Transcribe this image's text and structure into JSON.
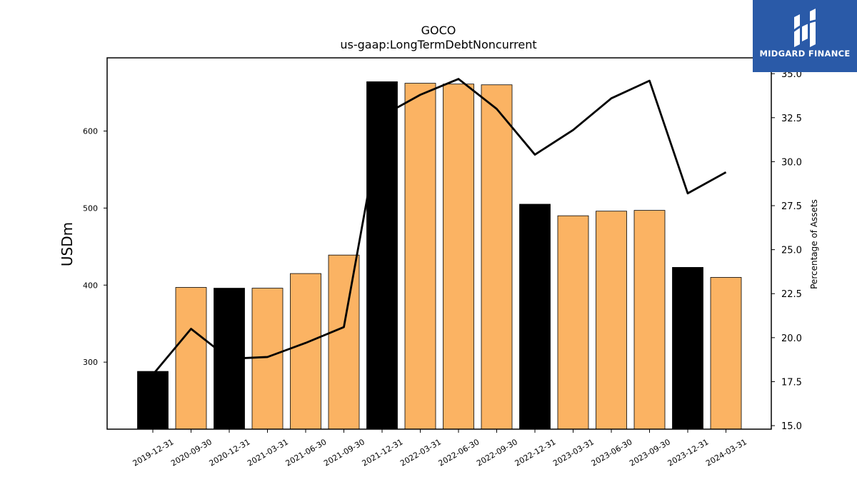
{
  "chart_data": {
    "type": "bar",
    "title": "GOCO",
    "subtitle": "us-gaap:LongTermDebtNoncurrent",
    "ylabel": "USDm",
    "y2label": "Percentage of Assets",
    "ylim": [
      213,
      695
    ],
    "y2lim": [
      14.8,
      35.9
    ],
    "yticks": [
      300,
      400,
      500,
      600
    ],
    "y2ticks": [
      "15.0",
      "17.5",
      "20.0",
      "22.5",
      "25.0",
      "27.5",
      "30.0",
      "32.5",
      "35.0"
    ],
    "categories": [
      "2019-12-31",
      "2020-09-30",
      "2020-12-31",
      "2021-03-31",
      "2021-06-30",
      "2021-09-30",
      "2021-12-31",
      "2022-03-31",
      "2022-06-30",
      "2022-09-30",
      "2022-12-31",
      "2023-03-31",
      "2023-06-30",
      "2023-09-30",
      "2023-12-31",
      "2024-03-31"
    ],
    "series": [
      {
        "values": [
          288,
          397,
          396,
          396,
          415,
          439,
          664,
          662,
          661,
          660,
          505,
          490,
          496,
          497,
          423,
          410
        ]
      },
      {
        "values": [
          17.9,
          20.5,
          18.8,
          18.9,
          19.7,
          20.6,
          32.6,
          33.8,
          34.7,
          33.0,
          30.4,
          31.8,
          33.6,
          34.6,
          28.2,
          29.4
        ]
      }
    ],
    "annual_flags": [
      true,
      false,
      true,
      false,
      false,
      false,
      true,
      false,
      false,
      false,
      true,
      false,
      false,
      false,
      true,
      false
    ],
    "colors": {
      "annual": "#000000",
      "quarter": "#fbb363",
      "line": "#000000",
      "bar_edge": "#000000"
    },
    "grid": false,
    "legend": "none"
  },
  "logo": {
    "text": "MIDGARD FINANCE",
    "bg": "#2a5aa8"
  }
}
